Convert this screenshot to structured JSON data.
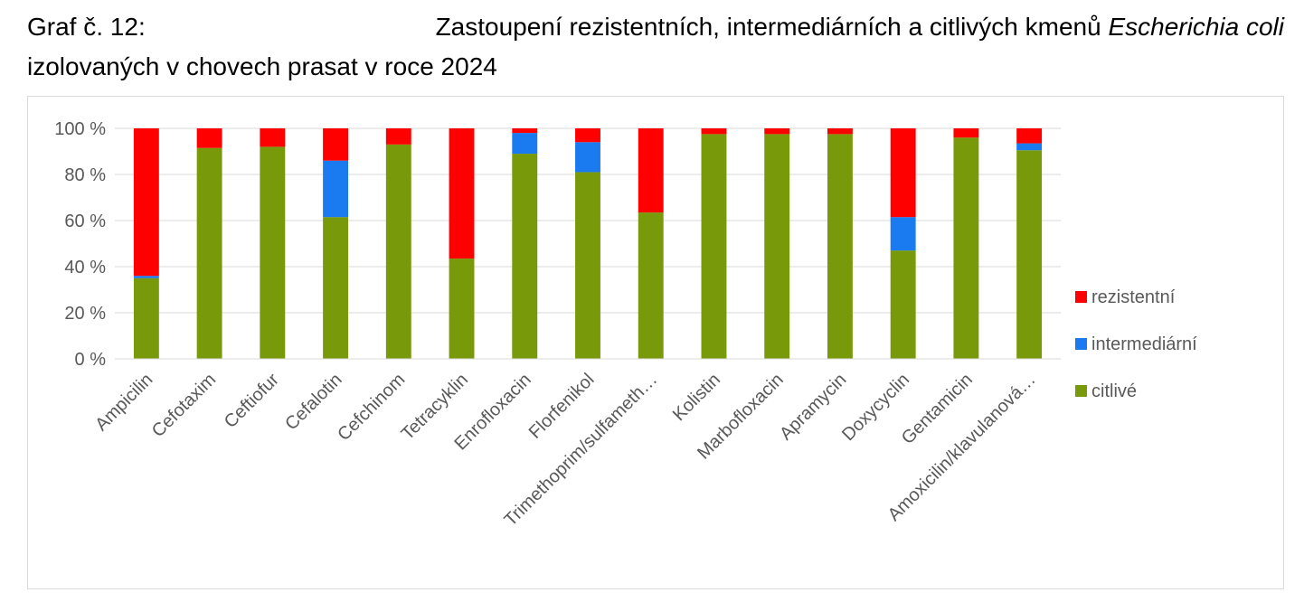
{
  "title": {
    "line1_prefix": "Graf č. 12:",
    "line1_main": "Zastoupení rezistentních, intermediárních a citlivých kmenů",
    "line1_italic": "Escherichia coli",
    "line2": "izolovaných v chovech prasat v roce 2024"
  },
  "chart_data": {
    "type": "bar",
    "stacked": true,
    "categories": [
      "Ampicilin",
      "Cefotaxim",
      "Ceftiofur",
      "Cefalotin",
      "Cefchinom",
      "Tetracyklin",
      "Enrofloxacin",
      "Florfenikol",
      "Trimethoprim/sulfameth…",
      "Kolistin",
      "Marbofloxacin",
      "Apramycin",
      "Doxycyclin",
      "Gentamicin",
      "Amoxicilin/klavulanová…"
    ],
    "series": [
      {
        "name": "citlivé",
        "color": "#77990a",
        "values": [
          35,
          91.5,
          92,
          61.5,
          93,
          43.5,
          89,
          81,
          63.5,
          97.5,
          97.5,
          97.5,
          47,
          96,
          90.5
        ]
      },
      {
        "name": "intermediární",
        "color": "#1a7af0",
        "values": [
          1,
          0,
          0,
          24.5,
          0,
          0,
          9,
          13,
          0,
          0,
          0,
          0,
          14.5,
          0,
          3
        ]
      },
      {
        "name": "rezistentní",
        "color": "#ff0000",
        "values": [
          64,
          8.5,
          8,
          14,
          7,
          56.5,
          2,
          6,
          36.5,
          2.5,
          2.5,
          2.5,
          38.5,
          4,
          6.5
        ]
      }
    ],
    "ylim": [
      0,
      100
    ],
    "yticks": [
      "0 %",
      "20 %",
      "40 %",
      "60 %",
      "80 %",
      "100 %"
    ],
    "ytick_values": [
      0,
      20,
      40,
      60,
      80,
      100
    ],
    "legend": {
      "position": "right",
      "order": [
        "rezistentní",
        "intermediární",
        "citlivé"
      ]
    },
    "grid": true
  }
}
